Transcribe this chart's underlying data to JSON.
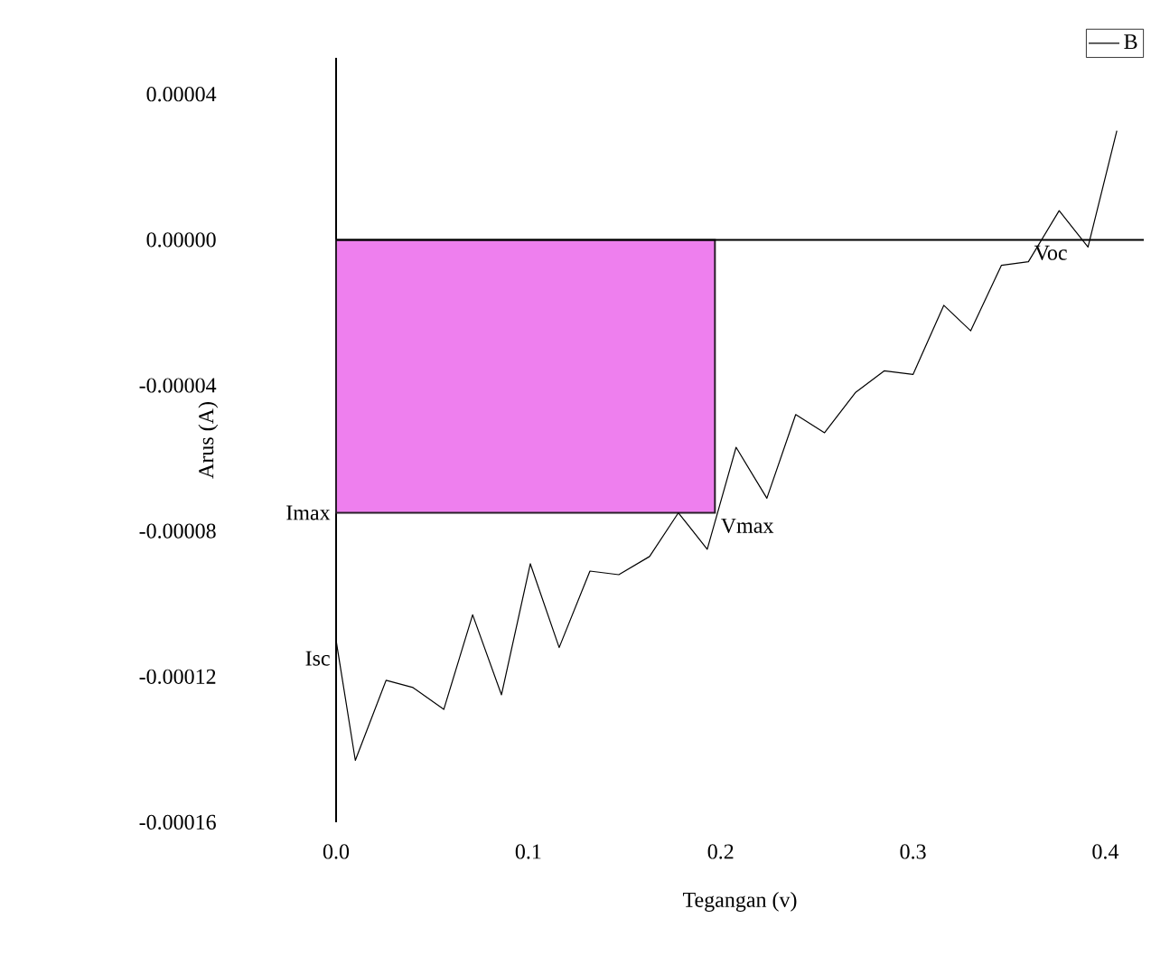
{
  "chart_data": {
    "type": "line",
    "xlabel": "Tegangan (v)",
    "ylabel": "Arus (A)",
    "xlim": [
      0,
      0.42
    ],
    "ylim": [
      -0.00016,
      5e-05
    ],
    "xticks": [
      {
        "value": 0,
        "label": "0.0"
      },
      {
        "value": 0.1,
        "label": "0.1"
      },
      {
        "value": 0.2,
        "label": "0.2"
      },
      {
        "value": 0.3,
        "label": "0.3"
      },
      {
        "value": 0.4,
        "label": "0.4"
      }
    ],
    "yticks": [
      {
        "value": 4e-05,
        "label": "0.00004"
      },
      {
        "value": 0,
        "label": "0.00000"
      },
      {
        "value": -4e-05,
        "label": "-0.00004"
      },
      {
        "value": -8e-05,
        "label": "-0.00008"
      },
      {
        "value": -0.00012,
        "label": "-0.00012"
      },
      {
        "value": -0.00016,
        "label": "-0.00016"
      }
    ],
    "legend": "top right",
    "ref_lines": [
      {
        "axis": "y",
        "value": 0,
        "color": "#000000"
      }
    ],
    "series": [
      {
        "type": "area",
        "color": "#ee7fee",
        "x": [
          0,
          0.197
        ],
        "values": [
          -7.5e-05,
          -7.5e-05
        ]
      },
      {
        "type": "line",
        "name": "B",
        "color": "#000000",
        "x": [
          0,
          0.01,
          0.026,
          0.04,
          0.056,
          0.071,
          0.086,
          0.101,
          0.116,
          0.132,
          0.147,
          0.163,
          0.178,
          0.193,
          0.208,
          0.224,
          0.239,
          0.254,
          0.27,
          0.285,
          0.3,
          0.316,
          0.33,
          0.346,
          0.36,
          0.376,
          0.391,
          0.406
        ],
        "values": [
          -0.00011,
          -0.000143,
          -0.000121,
          -0.000123,
          -0.000129,
          -0.000103,
          -0.000125,
          -8.9e-05,
          -0.000112,
          -9.1e-05,
          -9.2e-05,
          -8.7e-05,
          -7.5e-05,
          -8.5e-05,
          -5.7e-05,
          -7.1e-05,
          -4.8e-05,
          -5.3e-05,
          -4.2e-05,
          -3.6e-05,
          -3.7e-05,
          -1.8e-05,
          -2.5e-05,
          -7e-06,
          -6e-06,
          8e-06,
          -2e-06,
          3e-05
        ]
      }
    ],
    "annotations": [
      {
        "text": "Isc",
        "x": 0,
        "y": -0.000115
      },
      {
        "text": "Imax",
        "x": 0,
        "y": -7.5e-05
      },
      {
        "text": "Vmax",
        "x": 0.197,
        "y": -7.5e-05
      },
      {
        "text": "Voc",
        "x": 0.36,
        "y": 0
      }
    ]
  }
}
